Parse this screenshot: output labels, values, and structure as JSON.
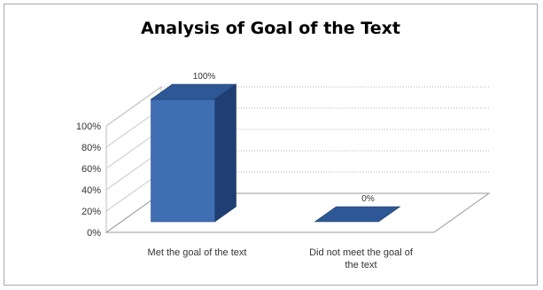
{
  "chart_data": {
    "type": "bar",
    "title": "Analysis of Goal of the Text",
    "categories": [
      "Met the goal of the text",
      "Did not meet the goal of the text"
    ],
    "category_lines": [
      [
        "Met the goal of the text"
      ],
      [
        "Did not meet the goal of",
        "the text"
      ]
    ],
    "values": [
      100,
      0
    ],
    "data_labels": [
      "100%",
      "0%"
    ],
    "y_ticks": [
      "0%",
      "20%",
      "40%",
      "60%",
      "80%",
      "100%"
    ],
    "ylim": [
      0,
      100
    ],
    "grid": true,
    "three_d": true,
    "bar_color": "#3f6eb3",
    "bar_top_color": "#2d5895",
    "bar_side_color": "#1f3f73"
  }
}
